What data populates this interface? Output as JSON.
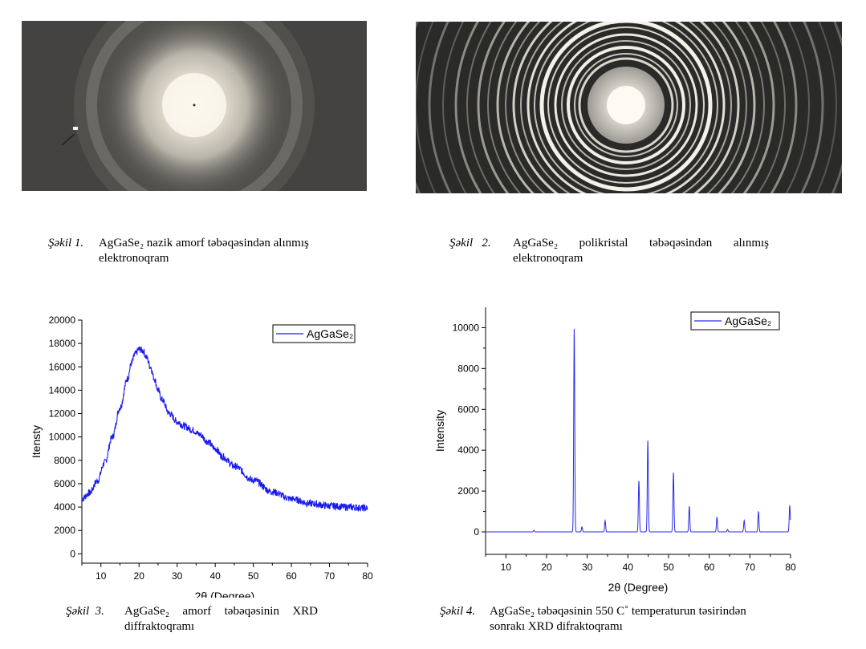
{
  "figures": [
    {
      "label": "Şəkil 1.",
      "line1": "AgGaSe₂ nazik amorf təbəqəsindən alınmış",
      "line2": "elektronoqram"
    },
    {
      "label": "Şəkil   2.",
      "line1": "AgGaSe₂   polikristal   təbəqəsindən   alınmış",
      "line2": "elektronoqram"
    },
    {
      "label": "Şəkil  3.",
      "line1": "AgGaSe₂  amorf  təbəqəsinin  XRD",
      "line2": "diffraktoqramı"
    },
    {
      "label": "Şəkil 4.",
      "line1": "AgGaSe₂ təbəqəsinin 550 C˚ temperaturun təsirindən",
      "line2": "sonrakı XRD difraktoqramı"
    }
  ],
  "chart_data": [
    {
      "type": "line",
      "title": "",
      "xlabel": "2θ (Degree)",
      "ylabel": "Itensty",
      "xlim": [
        5,
        80
      ],
      "ylim": [
        -800,
        20000
      ],
      "xticks": [
        10,
        20,
        30,
        40,
        50,
        60,
        70,
        80
      ],
      "yticks": [
        0,
        2000,
        4000,
        6000,
        8000,
        10000,
        12000,
        14000,
        16000,
        18000,
        20000
      ],
      "xtick_labels": [
        "10",
        "20",
        "30",
        "40",
        "50",
        "60",
        "70",
        "80"
      ],
      "ytick_labels": [
        "0",
        "2000",
        "4000",
        "6000",
        "8000",
        "10000",
        "12000",
        "14000",
        "16000",
        "18000",
        "20000"
      ],
      "legend_position": "top-right",
      "grid": false,
      "series": [
        {
          "name": "AgGaSe₂",
          "color": "#1a1aee",
          "x": [
            5,
            7,
            9,
            11,
            13,
            15,
            17,
            18,
            19,
            20,
            21,
            22,
            23,
            24,
            25,
            26,
            28,
            30,
            32,
            34,
            36,
            38,
            40,
            42,
            45,
            50,
            55,
            60,
            65,
            70,
            75,
            80
          ],
          "y": [
            4700,
            5200,
            6200,
            7800,
            10000,
            12500,
            15000,
            16300,
            17100,
            17500,
            17400,
            16800,
            16000,
            15000,
            14000,
            13200,
            12000,
            11300,
            10900,
            10600,
            10200,
            9600,
            9000,
            8300,
            7500,
            6300,
            5300,
            4700,
            4300,
            4100,
            4000,
            3900
          ]
        }
      ]
    },
    {
      "type": "line",
      "title": "",
      "xlabel": "2θ (Degree)",
      "ylabel": "Intensity",
      "xlim": [
        5,
        80
      ],
      "ylim": [
        -1100,
        11000
      ],
      "xticks": [
        10,
        20,
        30,
        40,
        50,
        60,
        70,
        80
      ],
      "yticks": [
        0,
        2000,
        4000,
        6000,
        8000,
        10000
      ],
      "xtick_labels": [
        "10",
        "20",
        "30",
        "40",
        "50",
        "60",
        "70",
        "80"
      ],
      "ytick_labels": [
        "0",
        "2000",
        "4000",
        "6000",
        "8000",
        "10000"
      ],
      "legend_position": "top-right",
      "grid": false,
      "series": [
        {
          "name": "AgGaSe₂",
          "color": "#2a2aee",
          "baseline": 0,
          "peaks": [
            {
              "x": 16.9,
              "y": 80
            },
            {
              "x": 26.8,
              "y": 9950
            },
            {
              "x": 28.7,
              "y": 250
            },
            {
              "x": 34.4,
              "y": 560
            },
            {
              "x": 42.7,
              "y": 2500
            },
            {
              "x": 44.9,
              "y": 4500
            },
            {
              "x": 51.2,
              "y": 2900
            },
            {
              "x": 55.1,
              "y": 1250
            },
            {
              "x": 61.9,
              "y": 720
            },
            {
              "x": 64.5,
              "y": 120
            },
            {
              "x": 68.6,
              "y": 560
            },
            {
              "x": 72.1,
              "y": 1000
            },
            {
              "x": 79.8,
              "y": 1300
            }
          ]
        }
      ]
    }
  ]
}
